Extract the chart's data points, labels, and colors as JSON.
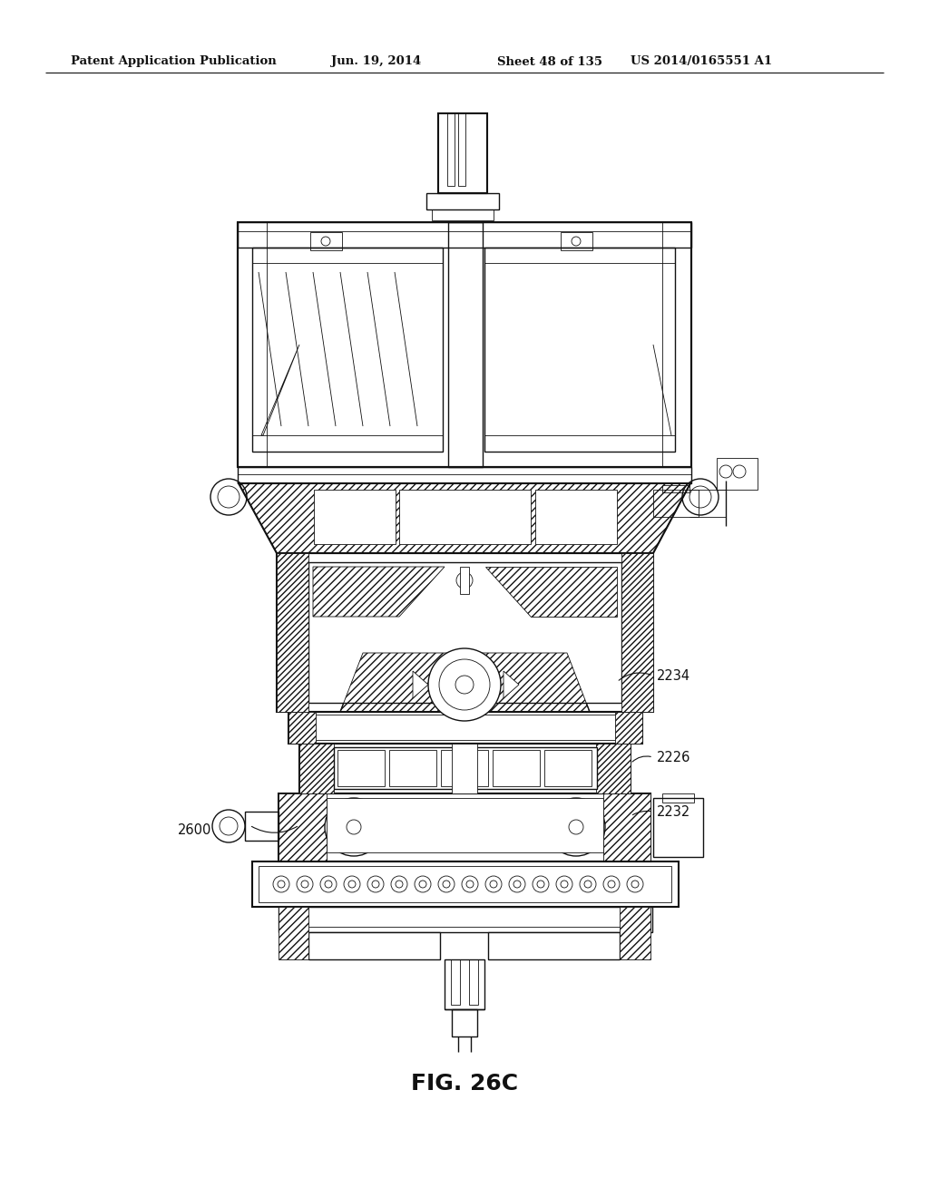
{
  "background_color": "#ffffff",
  "header_text": "Patent Application Publication",
  "header_date": "Jun. 19, 2014",
  "header_sheet": "Sheet 48 of 135",
  "header_patent": "US 2014/0165551 A1",
  "figure_label": "FIG. 26C",
  "label_2234": "2234",
  "label_2226": "2226",
  "label_2232": "2232",
  "label_2600": "2600",
  "header_font_size": 9.5,
  "label_font_size": 10.5,
  "figure_label_font_size": 18
}
